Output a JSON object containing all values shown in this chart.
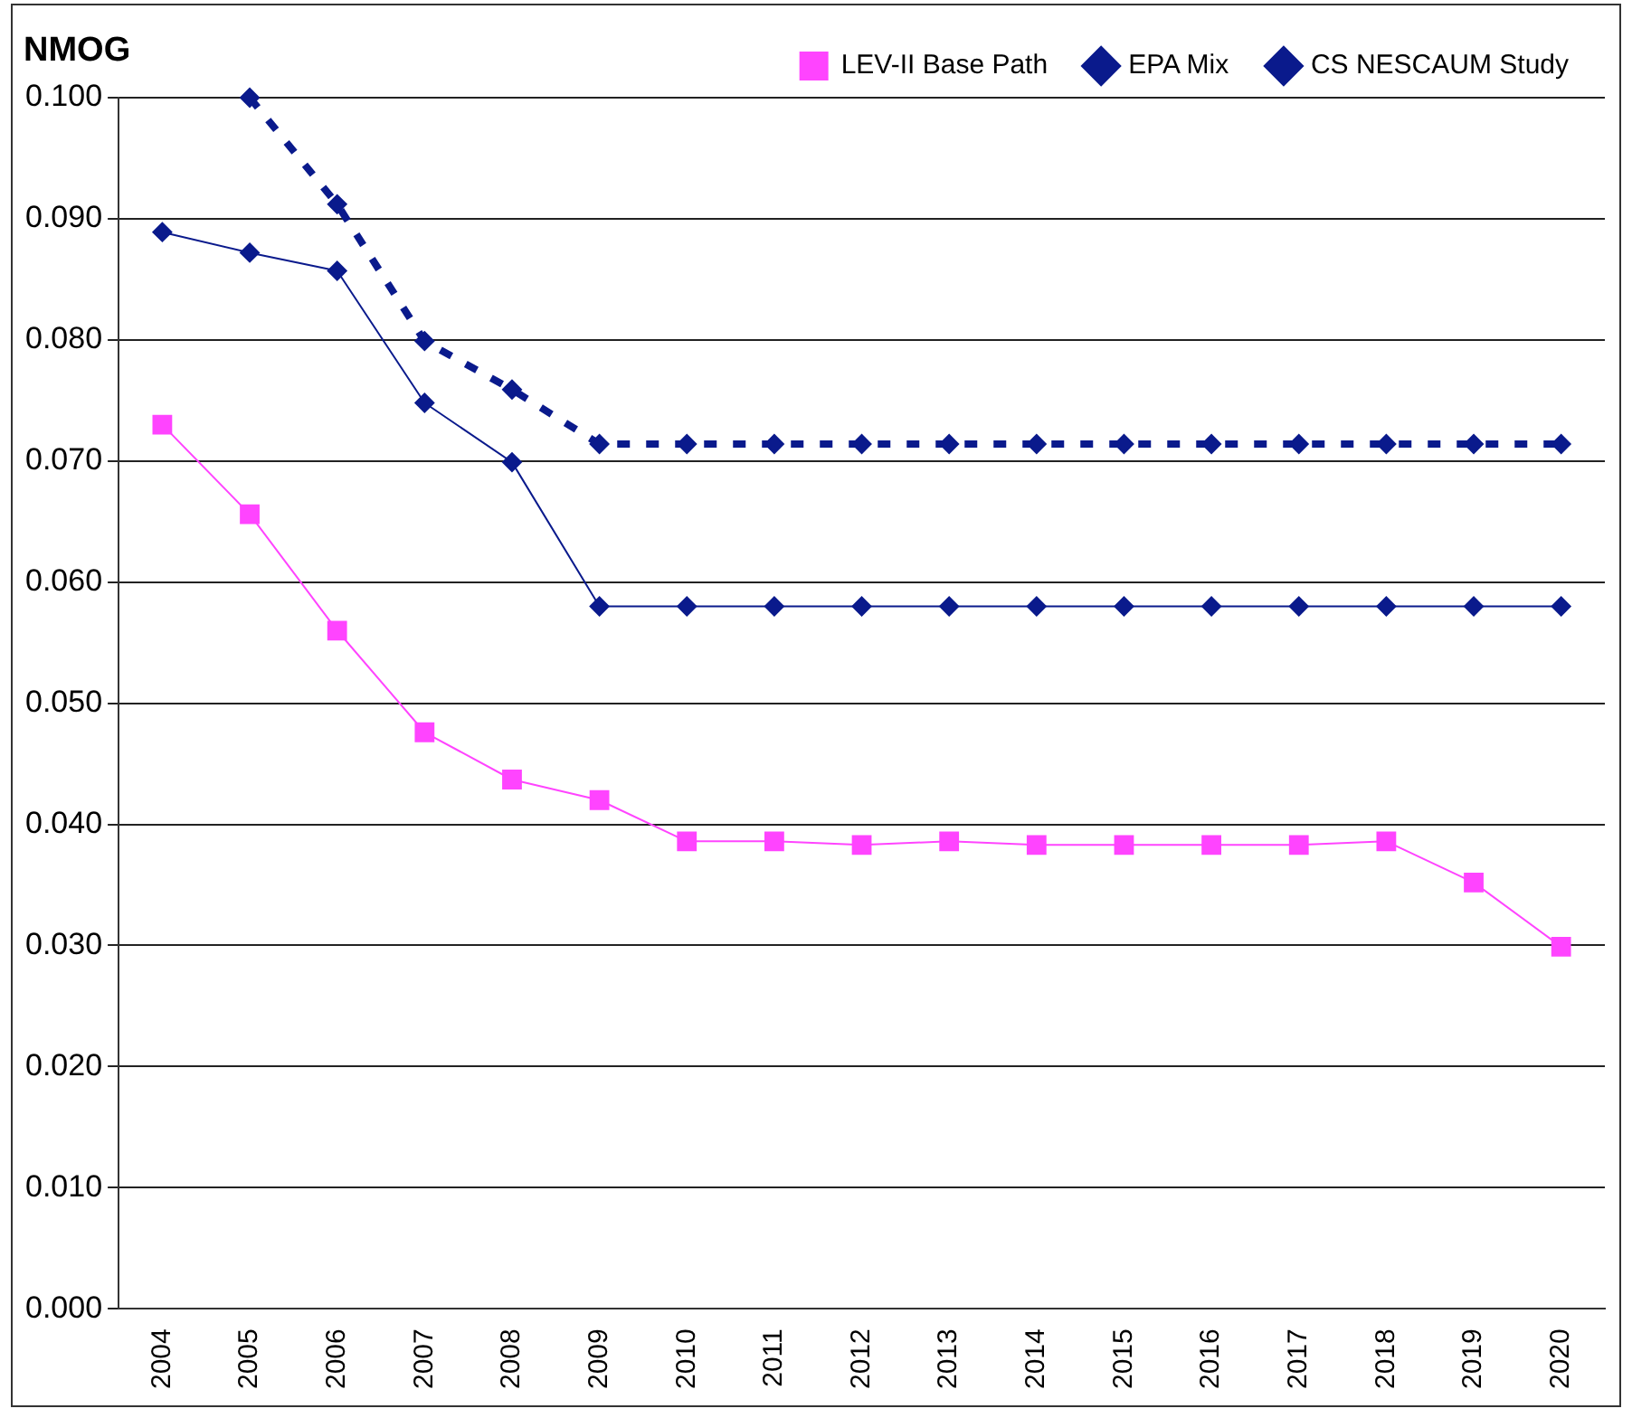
{
  "chart_data": {
    "type": "line",
    "ylabel": "NMOG",
    "categories": [
      "2004",
      "2005",
      "2006",
      "2007",
      "2008",
      "2009",
      "2010",
      "2011",
      "2012",
      "2013",
      "2014",
      "2015",
      "2016",
      "2017",
      "2018",
      "2019",
      "2020"
    ],
    "series": [
      {
        "name": "LEV-II Base Path",
        "color": "#ff44ff",
        "marker": "square",
        "line_style": "solid",
        "values": [
          0.073,
          0.0656,
          0.056,
          0.0476,
          0.0437,
          0.042,
          0.0386,
          0.0386,
          0.0383,
          0.0386,
          0.0383,
          0.0383,
          0.0383,
          0.0383,
          0.0386,
          0.0352,
          0.0299
        ]
      },
      {
        "name": "EPA Mix",
        "color": "#0a1a8c",
        "marker": "diamond",
        "line_style": "solid",
        "values": [
          0.0889,
          0.0872,
          0.0857,
          0.0748,
          0.0699,
          0.058,
          0.058,
          0.058,
          0.058,
          0.058,
          0.058,
          0.058,
          0.058,
          0.058,
          0.058,
          0.058,
          0.058
        ]
      },
      {
        "name": "CS NESCAUM Study",
        "color": "#0a1a8c",
        "marker": "diamond",
        "line_style": "dashed",
        "values": [
          null,
          0.1,
          0.0912,
          0.0799,
          0.0759,
          0.0714,
          0.0714,
          0.0714,
          0.0714,
          0.0714,
          0.0714,
          0.0714,
          0.0714,
          0.0714,
          0.0714,
          0.0714,
          0.0714
        ]
      }
    ],
    "ylim": [
      0,
      0.1
    ],
    "yticks": [
      {
        "value": 0,
        "label": "0.000"
      },
      {
        "value": 0.01,
        "label": "0.010"
      },
      {
        "value": 0.02,
        "label": "0.020"
      },
      {
        "value": 0.03,
        "label": "0.030"
      },
      {
        "value": 0.04,
        "label": "0.040"
      },
      {
        "value": 0.05,
        "label": "0.050"
      },
      {
        "value": 0.06,
        "label": "0.060"
      },
      {
        "value": 0.07,
        "label": "0.070"
      },
      {
        "value": 0.08,
        "label": "0.080"
      },
      {
        "value": 0.09,
        "label": "0.090"
      },
      {
        "value": 0.1,
        "label": "0.100"
      }
    ],
    "grid": "y",
    "legend": "top right"
  }
}
